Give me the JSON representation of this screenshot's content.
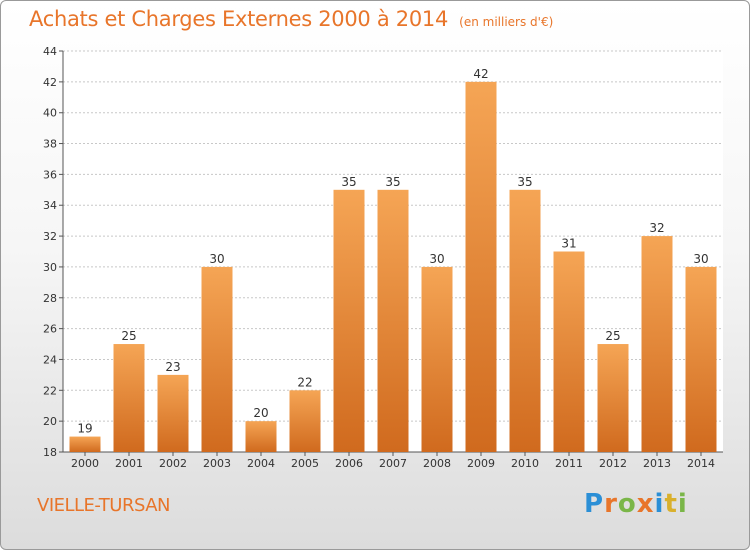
{
  "header": {
    "title": "Achats et Charges Externes 2000 à 2014",
    "subtitle": "(en milliers d'€)"
  },
  "footer": {
    "location": "VIELLE-TURSAN",
    "logo_letters": [
      "P",
      "r",
      "o",
      "x",
      "i",
      "t",
      "i"
    ],
    "logo_colors": [
      "#2b8fd6",
      "#e8752a",
      "#7ab648",
      "#e8752a",
      "#2b8fd6",
      "#d9b02c",
      "#7ab648"
    ]
  },
  "chart_data": {
    "type": "bar",
    "title": "Achats et Charges Externes 2000 à 2014",
    "subtitle": "(en milliers d'€)",
    "categories": [
      "2000",
      "2001",
      "2002",
      "2003",
      "2004",
      "2005",
      "2006",
      "2007",
      "2008",
      "2009",
      "2010",
      "2011",
      "2012",
      "2013",
      "2014"
    ],
    "values": [
      19,
      25,
      23,
      30,
      20,
      22,
      35,
      35,
      30,
      42,
      35,
      31,
      25,
      32,
      30
    ],
    "ylim": [
      18,
      44
    ],
    "yticks": [
      18,
      20,
      22,
      24,
      26,
      28,
      30,
      32,
      34,
      36,
      38,
      40,
      42,
      44
    ],
    "grid": true,
    "bar_color_top": "#f5a555",
    "bar_color_bottom": "#d06a1e"
  }
}
